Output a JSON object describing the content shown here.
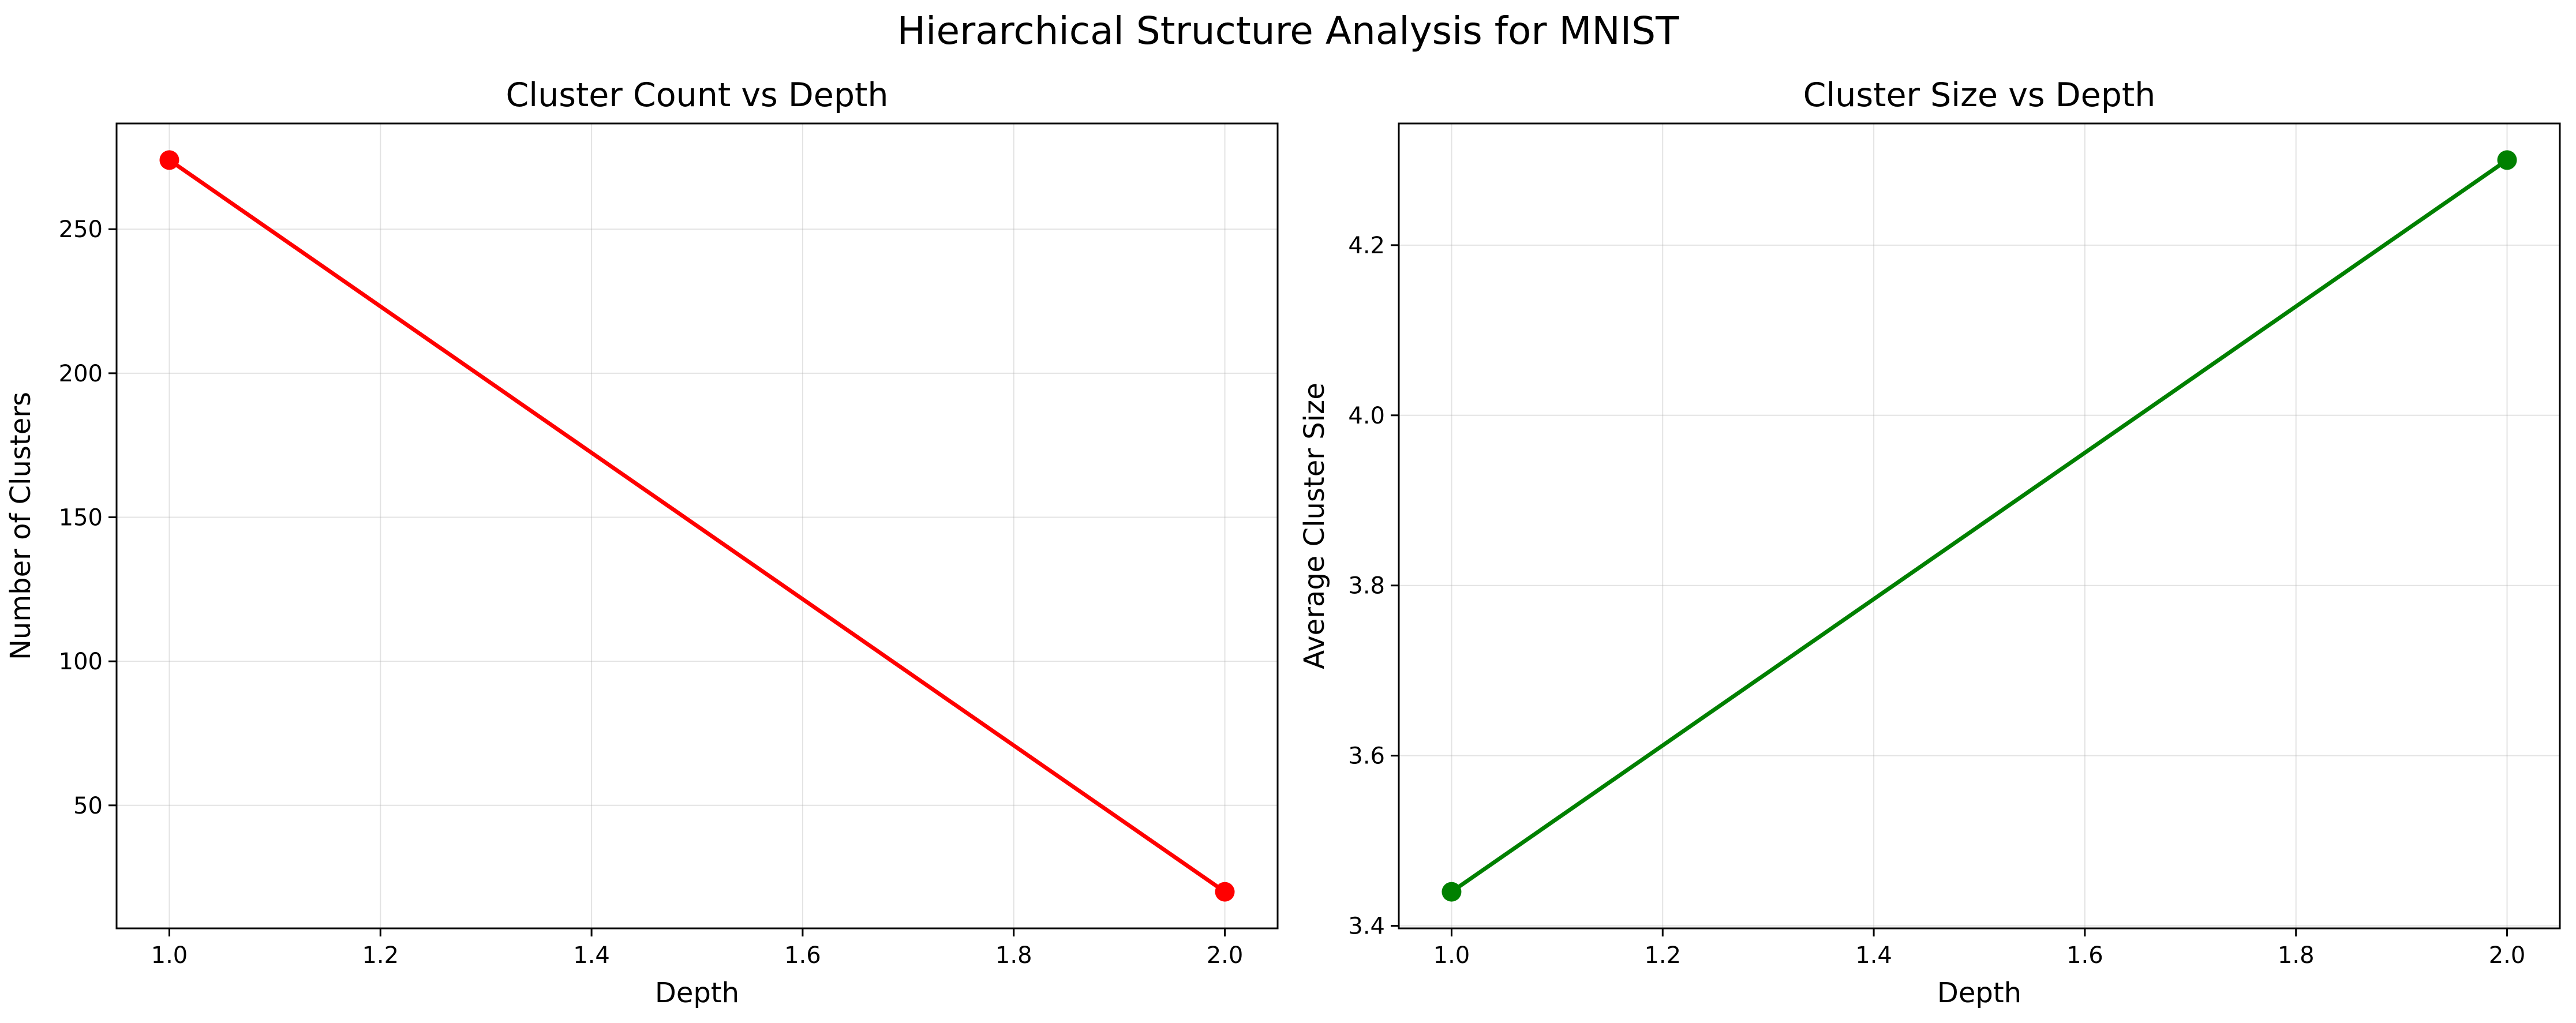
{
  "figure": {
    "title": "Hierarchical Structure Analysis for MNIST"
  },
  "chart_data": [
    {
      "type": "line",
      "title": "Cluster Count vs Depth",
      "xlabel": "Depth",
      "ylabel": "Number of Clusters",
      "x": [
        1.0,
        2.0
      ],
      "series": [
        {
          "values": [
            274,
            20
          ],
          "color": "#ff0000",
          "marker": "circle"
        }
      ],
      "xlim": [
        0.95,
        2.05
      ],
      "ylim": [
        7.3,
        286.7
      ],
      "xticks": [
        1.0,
        1.2,
        1.4,
        1.6,
        1.8,
        2.0
      ],
      "xtick_labels": [
        "1.0",
        "1.2",
        "1.4",
        "1.6",
        "1.8",
        "2.0"
      ],
      "yticks": [
        50,
        100,
        150,
        200,
        250
      ],
      "ytick_labels": [
        "50",
        "100",
        "150",
        "200",
        "250"
      ],
      "grid": true
    },
    {
      "type": "line",
      "title": "Cluster Size vs Depth",
      "xlabel": "Depth",
      "ylabel": "Average Cluster Size",
      "x": [
        1.0,
        2.0
      ],
      "series": [
        {
          "values": [
            3.44,
            4.3
          ],
          "color": "#008000",
          "marker": "circle"
        }
      ],
      "xlim": [
        0.95,
        2.05
      ],
      "ylim": [
        3.397,
        4.343
      ],
      "xticks": [
        1.0,
        1.2,
        1.4,
        1.6,
        1.8,
        2.0
      ],
      "xtick_labels": [
        "1.0",
        "1.2",
        "1.4",
        "1.6",
        "1.8",
        "2.0"
      ],
      "yticks": [
        3.4,
        3.6,
        3.8,
        4.0,
        4.2
      ],
      "ytick_labels": [
        "3.4",
        "3.6",
        "3.8",
        "4.0",
        "4.2"
      ],
      "grid": true
    }
  ]
}
